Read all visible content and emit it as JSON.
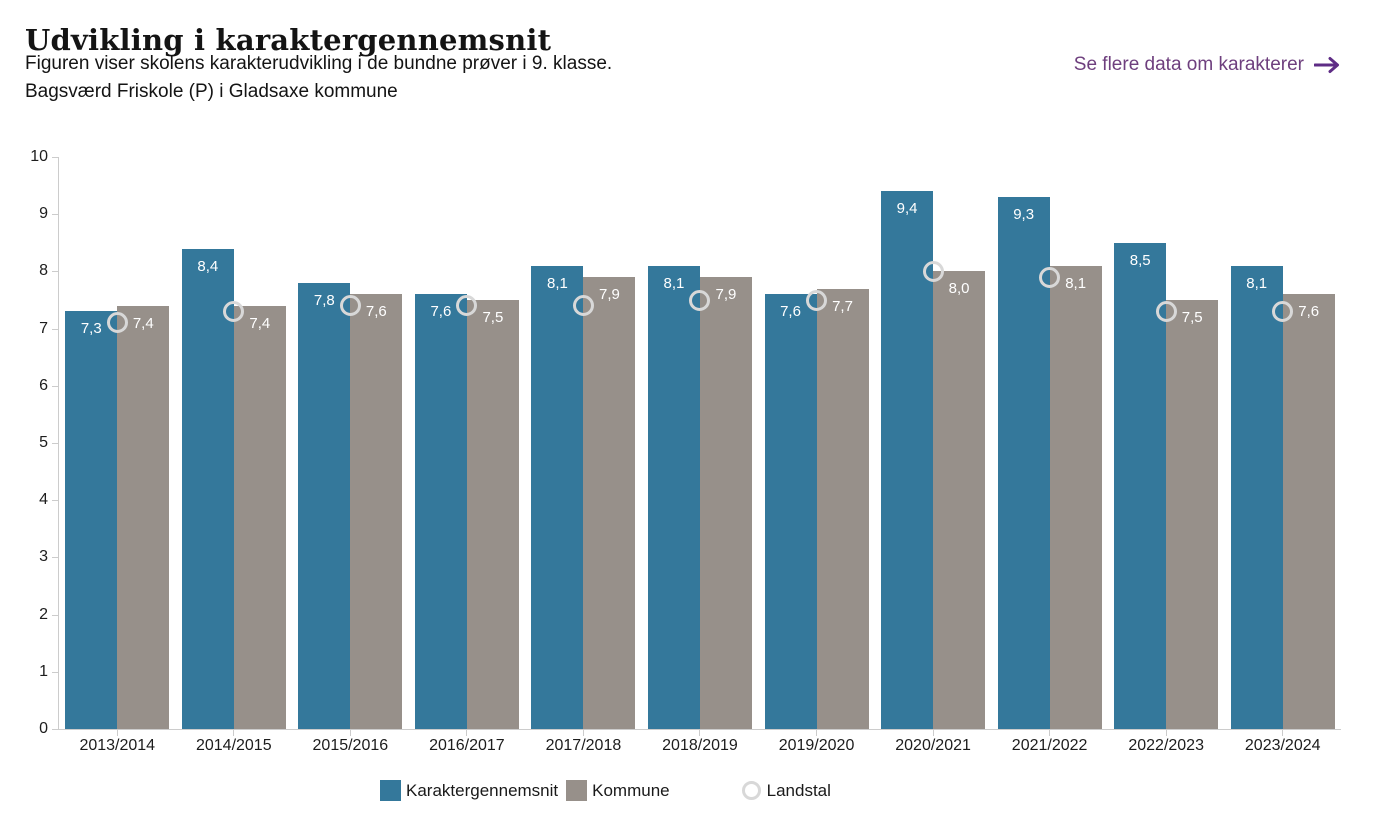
{
  "header": {
    "title": "Udvikling i karaktergennemsnit",
    "subtitle_line1": "Figuren viser skolens karakterudvikling i de bundne prøver i 9. klasse.",
    "subtitle_line2": "Bagsværd Friskole (P) i Gladsaxe kommune",
    "link_label": "Se flere data om karakterer",
    "link_color": "#6e3f7e",
    "arrow_color": "#5e2c85"
  },
  "chart_data": {
    "type": "bar",
    "title": "Udvikling i karaktergennemsnit",
    "categories": [
      "2013/2014",
      "2014/2015",
      "2015/2016",
      "2016/2017",
      "2017/2018",
      "2018/2019",
      "2019/2020",
      "2020/2021",
      "2021/2022",
      "2022/2023",
      "2023/2024"
    ],
    "series": [
      {
        "name": "Karaktergennemsnit",
        "type": "bar",
        "color": "#34789b",
        "values": [
          7.3,
          8.4,
          7.8,
          7.6,
          8.1,
          8.1,
          7.6,
          9.4,
          9.3,
          8.5,
          8.1
        ],
        "labels": [
          "7,3",
          "8,4",
          "7,8",
          "7,6",
          "8,1",
          "8,1",
          "7,6",
          "9,4",
          "9,3",
          "8,5",
          "8,1"
        ]
      },
      {
        "name": "Kommune",
        "type": "bar",
        "color": "#97908a",
        "values": [
          7.4,
          7.4,
          7.6,
          7.5,
          7.9,
          7.9,
          7.7,
          8.0,
          8.1,
          7.5,
          7.6
        ],
        "labels": [
          "7,4",
          "7,4",
          "7,6",
          "7,5",
          "7,9",
          "7,9",
          "7,7",
          "8,0",
          "8,1",
          "7,5",
          "7,6"
        ]
      },
      {
        "name": "Landstal",
        "type": "marker",
        "color": "#d8d8d8",
        "values": [
          7.1,
          7.3,
          7.4,
          7.4,
          7.4,
          7.5,
          7.5,
          8.0,
          7.9,
          7.3,
          7.3
        ]
      }
    ],
    "ylim": [
      0,
      10
    ],
    "yticks": [
      0,
      1,
      2,
      3,
      4,
      5,
      6,
      7,
      8,
      9,
      10
    ],
    "grid": false,
    "legend_position": "bottom",
    "bar_label_color": "#ffffff",
    "axis_color": "#cccccc"
  },
  "legend": {
    "items": [
      {
        "label": "Karaktergennemsnit",
        "shape": "square",
        "color": "#34789b"
      },
      {
        "label": "Kommune",
        "shape": "square",
        "color": "#97908a"
      },
      {
        "label": "Landstal",
        "shape": "circle",
        "color": "#d8d8d8"
      }
    ]
  }
}
